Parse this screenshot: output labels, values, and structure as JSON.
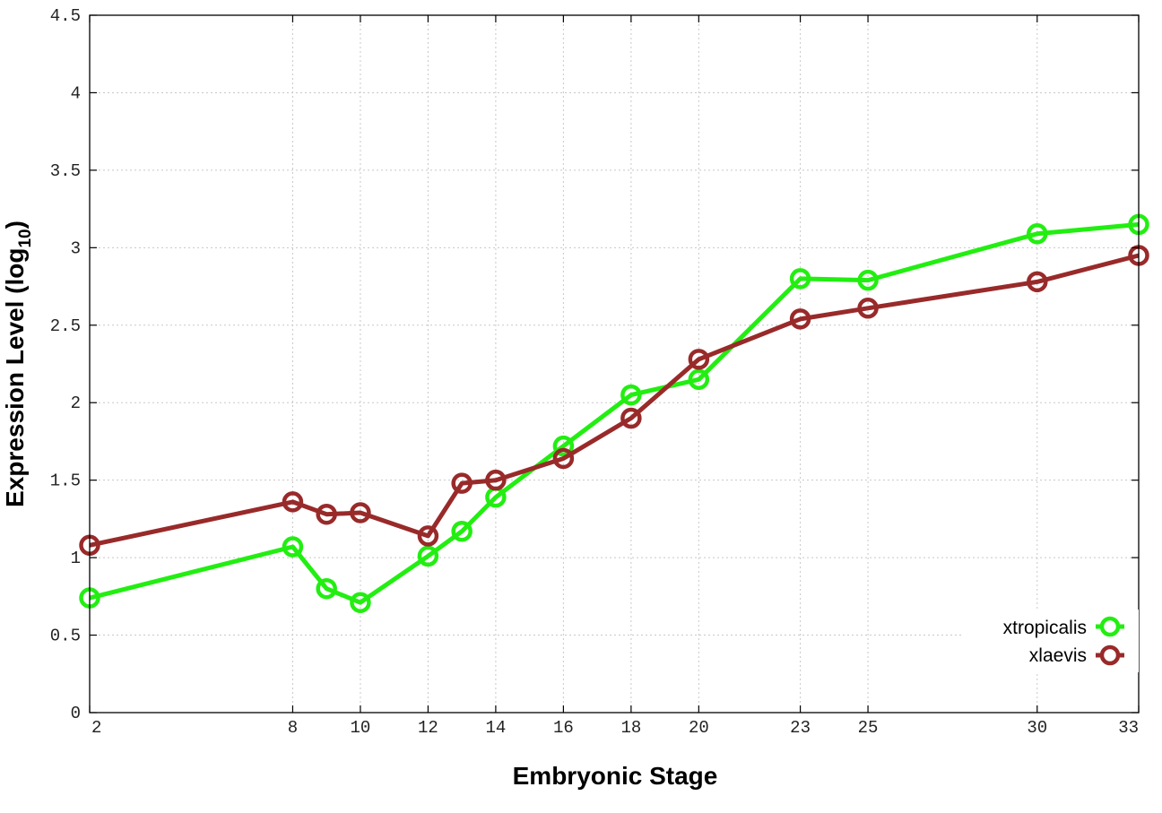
{
  "chart_data": {
    "type": "line",
    "x": [
      2,
      8,
      9,
      10,
      12,
      13,
      14,
      16,
      18,
      20,
      23,
      25,
      30,
      33
    ],
    "x_ticks": [
      "2",
      "8",
      "10",
      "12",
      "14",
      "16",
      "18",
      "20",
      "23",
      "25",
      "30",
      "33"
    ],
    "y_ticks": [
      "0",
      "0.5",
      "1",
      "1.5",
      "2",
      "2.5",
      "3",
      "3.5",
      "4",
      "4.5"
    ],
    "xlabel": "Embryonic Stage",
    "ylabel_main": "Expression Level (log",
    "ylabel_sub": "10",
    "ylabel_close": ")",
    "ylim": [
      0,
      4.5
    ],
    "xlim": [
      2,
      33
    ],
    "grid": true,
    "legend_position": "bottom-right",
    "series": [
      {
        "name": "xtropicalis",
        "color": "#22ee11",
        "values": [
          0.74,
          1.07,
          0.8,
          0.71,
          1.01,
          1.17,
          1.39,
          1.72,
          2.05,
          2.15,
          2.8,
          2.79,
          3.09,
          3.15
        ]
      },
      {
        "name": "xlaevis",
        "color": "#992a2a",
        "values": [
          1.08,
          1.36,
          1.28,
          1.29,
          1.14,
          1.48,
          1.5,
          1.64,
          1.9,
          2.28,
          2.54,
          2.61,
          2.78,
          2.95
        ]
      }
    ]
  }
}
